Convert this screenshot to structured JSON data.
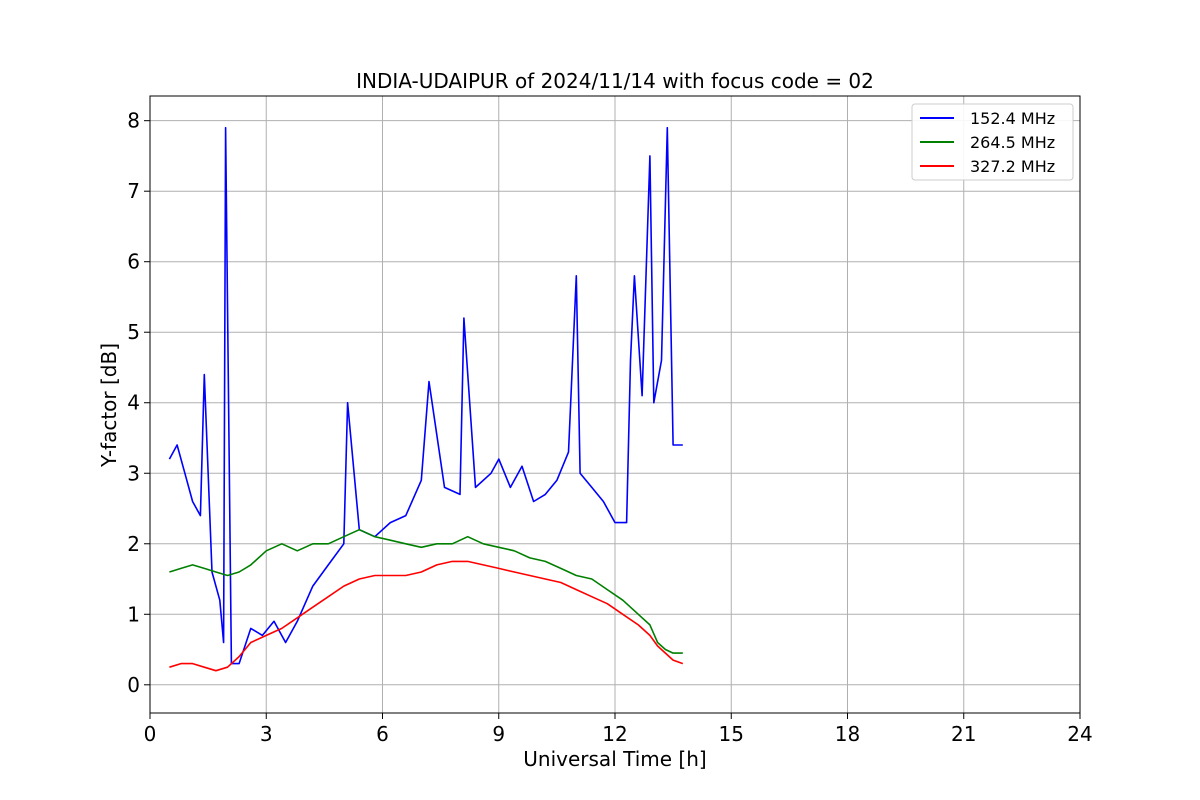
{
  "chart_data": {
    "type": "line",
    "title": "INDIA-UDAIPUR of 2024/11/14 with focus code = 02",
    "xlabel": "Universal Time [h]",
    "ylabel": "Y-factor [dB]",
    "xlim": [
      0,
      24
    ],
    "ylim": [
      -0.4,
      8.35
    ],
    "xticks": [
      0,
      3,
      6,
      9,
      12,
      15,
      18,
      21,
      24
    ],
    "yticks": [
      0,
      1,
      2,
      3,
      4,
      5,
      6,
      7,
      8
    ],
    "grid": true,
    "legend_position": "top-right",
    "series": [
      {
        "name": "152.4 MHz",
        "color": "#0000ff",
        "x": [
          0.5,
          0.7,
          0.9,
          1.1,
          1.3,
          1.4,
          1.6,
          1.8,
          1.9,
          1.95,
          2.1,
          2.3,
          2.6,
          2.9,
          3.2,
          3.5,
          3.8,
          4.2,
          4.6,
          5.0,
          5.1,
          5.4,
          5.8,
          6.2,
          6.6,
          7.0,
          7.2,
          7.6,
          8.0,
          8.1,
          8.4,
          8.8,
          9.0,
          9.3,
          9.6,
          9.9,
          10.2,
          10.5,
          10.8,
          11.0,
          11.1,
          11.4,
          11.7,
          12.0,
          12.3,
          12.4,
          12.5,
          12.7,
          12.9,
          13.0,
          13.2,
          13.35,
          13.5,
          13.75
        ],
        "y": [
          3.2,
          3.4,
          3.0,
          2.6,
          2.4,
          4.4,
          1.6,
          1.2,
          0.6,
          7.9,
          0.3,
          0.3,
          0.8,
          0.7,
          0.9,
          0.6,
          0.9,
          1.4,
          1.7,
          2.0,
          4.0,
          2.2,
          2.1,
          2.3,
          2.4,
          2.9,
          4.3,
          2.8,
          2.7,
          5.2,
          2.8,
          3.0,
          3.2,
          2.8,
          3.1,
          2.6,
          2.7,
          2.9,
          3.3,
          5.8,
          3.0,
          2.8,
          2.6,
          2.3,
          2.3,
          4.6,
          5.8,
          4.1,
          7.5,
          4.0,
          4.6,
          7.9,
          3.4,
          3.4
        ]
      },
      {
        "name": "264.5 MHz",
        "color": "#008000",
        "x": [
          0.5,
          0.8,
          1.1,
          1.4,
          1.7,
          2.0,
          2.3,
          2.6,
          3.0,
          3.4,
          3.8,
          4.2,
          4.6,
          5.0,
          5.4,
          5.8,
          6.2,
          6.6,
          7.0,
          7.4,
          7.8,
          8.2,
          8.6,
          9.0,
          9.4,
          9.8,
          10.2,
          10.6,
          11.0,
          11.4,
          11.8,
          12.2,
          12.6,
          12.9,
          13.1,
          13.3,
          13.5,
          13.75
        ],
        "y": [
          1.6,
          1.65,
          1.7,
          1.65,
          1.6,
          1.55,
          1.6,
          1.7,
          1.9,
          2.0,
          1.9,
          2.0,
          2.0,
          2.1,
          2.2,
          2.1,
          2.05,
          2.0,
          1.95,
          2.0,
          2.0,
          2.1,
          2.0,
          1.95,
          1.9,
          1.8,
          1.75,
          1.65,
          1.55,
          1.5,
          1.35,
          1.2,
          1.0,
          0.85,
          0.6,
          0.5,
          0.45,
          0.45
        ]
      },
      {
        "name": "327.2 MHz",
        "color": "#ff0000",
        "x": [
          0.5,
          0.8,
          1.1,
          1.4,
          1.7,
          2.0,
          2.3,
          2.6,
          3.0,
          3.4,
          3.8,
          4.2,
          4.6,
          5.0,
          5.4,
          5.8,
          6.2,
          6.6,
          7.0,
          7.4,
          7.8,
          8.2,
          8.6,
          9.0,
          9.4,
          9.8,
          10.2,
          10.6,
          11.0,
          11.4,
          11.8,
          12.2,
          12.6,
          12.9,
          13.1,
          13.3,
          13.5,
          13.75
        ],
        "y": [
          0.25,
          0.3,
          0.3,
          0.25,
          0.2,
          0.25,
          0.4,
          0.6,
          0.7,
          0.8,
          0.95,
          1.1,
          1.25,
          1.4,
          1.5,
          1.55,
          1.55,
          1.55,
          1.6,
          1.7,
          1.75,
          1.75,
          1.7,
          1.65,
          1.6,
          1.55,
          1.5,
          1.45,
          1.35,
          1.25,
          1.15,
          1.0,
          0.85,
          0.7,
          0.55,
          0.45,
          0.35,
          0.3
        ]
      }
    ]
  }
}
